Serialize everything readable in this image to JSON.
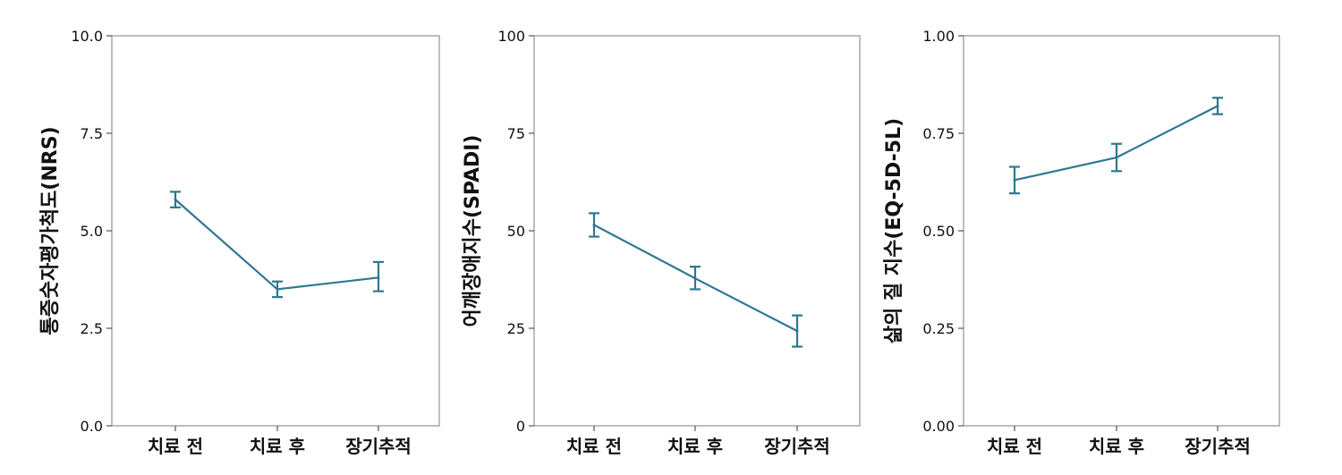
{
  "chart_data": [
    {
      "type": "line",
      "ylabel": "통증숫자평가척도(NRS)",
      "categories": [
        "치료 전",
        "치료 후",
        "장기추적"
      ],
      "ylim": [
        0,
        10
      ],
      "yticks": [
        "0.0",
        "2.5",
        "5.0",
        "7.5",
        "10.0"
      ],
      "ytick_values": [
        0,
        2.5,
        5,
        7.5,
        10
      ],
      "values": [
        5.8,
        3.5,
        3.8
      ],
      "error_low": [
        5.6,
        3.3,
        3.45
      ],
      "error_high": [
        6.0,
        3.7,
        4.2
      ],
      "color": "#2e7891"
    },
    {
      "type": "line",
      "ylabel": "어깨장애지수(SPADI)",
      "categories": [
        "치료 전",
        "치료 후",
        "장기추적"
      ],
      "ylim": [
        0,
        100
      ],
      "yticks": [
        "0",
        "25",
        "50",
        "75",
        "100"
      ],
      "ytick_values": [
        0,
        25,
        50,
        75,
        100
      ],
      "values": [
        51.5,
        37.8,
        24.3
      ],
      "error_low": [
        48.5,
        35.0,
        20.3
      ],
      "error_high": [
        54.5,
        40.8,
        28.3
      ],
      "color": "#2e7891"
    },
    {
      "type": "line",
      "ylabel": "삶의 질 지수(EQ-5D-5L)",
      "categories": [
        "치료 전",
        "치료 후",
        "장기추적"
      ],
      "ylim": [
        0,
        1
      ],
      "yticks": [
        "0.00",
        "0.25",
        "0.50",
        "0.75",
        "1.00"
      ],
      "ytick_values": [
        0,
        0.25,
        0.5,
        0.75,
        1.0
      ],
      "values": [
        0.63,
        0.688,
        0.82
      ],
      "error_low": [
        0.596,
        0.653,
        0.799
      ],
      "error_high": [
        0.664,
        0.723,
        0.841
      ],
      "color": "#2e7891"
    }
  ]
}
